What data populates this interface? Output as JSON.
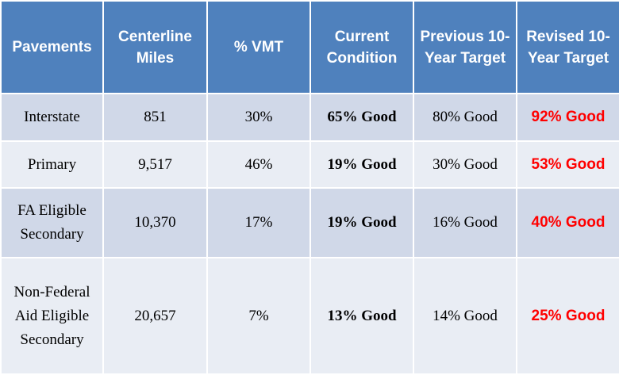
{
  "table": {
    "headers": {
      "pavements": "Pavements",
      "centerline_miles": "Centerline Miles",
      "pct_vmt": "% VMT",
      "current_condition": "Current Condition",
      "previous_target": "Previous 10-Year Target",
      "revised_target": "Revised 10-Year Target"
    },
    "rows": [
      {
        "pavement": "Interstate",
        "miles": "851",
        "vmt": "30%",
        "current": "65% Good",
        "previous": "80% Good",
        "revised": "92% Good"
      },
      {
        "pavement": "Primary",
        "miles": "9,517",
        "vmt": "46%",
        "current": "19% Good",
        "previous": "30% Good",
        "revised": "53% Good"
      },
      {
        "pavement": "FA Eligible Secondary",
        "miles": "10,370",
        "vmt": "17%",
        "current": "19% Good",
        "previous": "16% Good",
        "revised": "40% Good"
      },
      {
        "pavement": "Non-Federal Aid Eligible Secondary",
        "miles": "20,657",
        "vmt": "7%",
        "current": "13% Good",
        "previous": "14% Good",
        "revised": "25% Good"
      }
    ]
  },
  "colors": {
    "header_bg": "#4f81bd",
    "header_text": "#ffffff",
    "row_band_dark": "#d0d8e8",
    "row_band_light": "#e9edf4",
    "revised_text": "#ff0000"
  }
}
